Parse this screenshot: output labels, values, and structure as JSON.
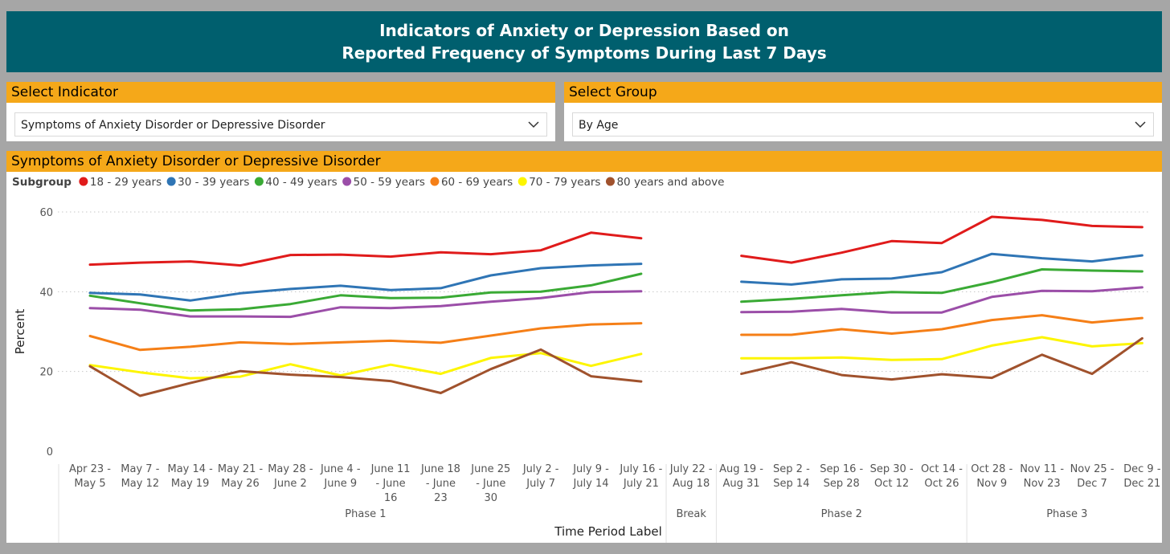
{
  "header": {
    "title_line1": "Indicators of Anxiety or Depression Based on",
    "title_line2": "Reported Frequency of Symptoms During Last 7 Days"
  },
  "indicator_selector": {
    "label": "Select Indicator",
    "value": "Symptoms of Anxiety Disorder or Depressive Disorder",
    "icon": "chevron-down-icon"
  },
  "group_selector": {
    "label": "Select Group",
    "value": "By Age",
    "icon": "chevron-down-icon"
  },
  "chart_panel": {
    "title": "Symptoms of Anxiety Disorder or Depressive Disorder"
  },
  "chart_data": {
    "type": "line",
    "legend_title": "Subgroup",
    "legend_position": "top-left",
    "xlabel": "Time Period Label",
    "ylabel": "Percent",
    "ylim": [
      0,
      60
    ],
    "yticks": [
      0,
      20,
      40,
      60
    ],
    "grid": "horizontal-dotted",
    "categories": [
      [
        "Apr 23 -",
        "May 5"
      ],
      [
        "May 7 -",
        "May 12"
      ],
      [
        "May 14 -",
        "May 19"
      ],
      [
        "May 21 -",
        "May 26"
      ],
      [
        "May 28 -",
        "June 2"
      ],
      [
        "June 4 -",
        "June 9"
      ],
      [
        "June 11",
        "- June",
        "16"
      ],
      [
        "June 18",
        "- June",
        "23"
      ],
      [
        "June 25",
        "- June",
        "30"
      ],
      [
        "July 2 -",
        "July 7"
      ],
      [
        "July 9 -",
        "July 14"
      ],
      [
        "July 16 -",
        "July 21"
      ],
      [
        "July 22 -",
        "Aug 18"
      ],
      [
        "Aug 19 -",
        "Aug 31"
      ],
      [
        "Sep 2 -",
        "Sep 14"
      ],
      [
        "Sep 16 -",
        "Sep 28"
      ],
      [
        "Sep 30 -",
        "Oct 12"
      ],
      [
        "Oct 14 -",
        "Oct 26"
      ],
      [
        "Oct 28 -",
        "Nov 9"
      ],
      [
        "Nov 11 -",
        "Nov 23"
      ],
      [
        "Nov 25 -",
        "Dec 7"
      ],
      [
        "Dec 9 -",
        "Dec 21"
      ]
    ],
    "groups": [
      {
        "name": "Phase 1",
        "start": 0,
        "end": 11
      },
      {
        "name": "Break",
        "start": 12,
        "end": 12
      },
      {
        "name": "Phase 2",
        "start": 13,
        "end": 17
      },
      {
        "name": "Phase 3",
        "start": 18,
        "end": 21
      }
    ],
    "series": [
      {
        "name": "18 - 29 years",
        "color": "#e01b1b",
        "values": [
          46.8,
          47.3,
          47.6,
          46.6,
          49.2,
          49.3,
          48.8,
          49.9,
          49.4,
          50.4,
          54.8,
          53.4,
          null,
          49.0,
          47.3,
          49.8,
          52.7,
          52.2,
          58.8,
          58.0,
          56.5,
          56.2
        ]
      },
      {
        "name": "30 - 39 years",
        "color": "#2f75b5",
        "values": [
          39.7,
          39.3,
          37.8,
          39.6,
          40.7,
          41.5,
          40.4,
          40.9,
          44.1,
          45.9,
          46.6,
          47.0,
          null,
          42.5,
          41.8,
          43.1,
          43.3,
          44.9,
          49.5,
          48.4,
          47.6,
          49.1
        ]
      },
      {
        "name": "40 - 49 years",
        "color": "#3aaa35",
        "values": [
          39.0,
          37.1,
          35.3,
          35.6,
          36.9,
          39.1,
          38.4,
          38.5,
          39.8,
          40.0,
          41.6,
          44.5,
          null,
          37.5,
          38.2,
          39.1,
          39.9,
          39.7,
          42.4,
          45.6,
          45.3,
          45.1
        ]
      },
      {
        "name": "50 - 59 years",
        "color": "#9b4ea8",
        "values": [
          35.9,
          35.5,
          33.8,
          33.8,
          33.7,
          36.1,
          35.9,
          36.4,
          37.5,
          38.4,
          39.9,
          40.1,
          null,
          34.9,
          35.0,
          35.7,
          34.8,
          34.8,
          38.7,
          40.2,
          40.1,
          41.1
        ]
      },
      {
        "name": "60 - 69 years",
        "color": "#f57f17",
        "values": [
          28.9,
          25.4,
          26.2,
          27.3,
          26.9,
          27.3,
          27.7,
          27.2,
          29.0,
          30.8,
          31.8,
          32.1,
          null,
          29.2,
          29.2,
          30.6,
          29.5,
          30.6,
          32.9,
          34.1,
          32.3,
          33.4
        ]
      },
      {
        "name": "70 - 79 years",
        "color": "#fdf500",
        "values": [
          21.6,
          19.8,
          18.3,
          18.7,
          21.8,
          19.0,
          21.7,
          19.4,
          23.4,
          24.6,
          21.4,
          24.4,
          null,
          23.3,
          23.3,
          23.5,
          22.9,
          23.1,
          26.5,
          28.6,
          26.3,
          27.1
        ]
      },
      {
        "name": "80 years and above",
        "color": "#a0522d",
        "values": [
          21.3,
          13.9,
          17.1,
          20.1,
          19.2,
          18.6,
          17.6,
          14.6,
          20.6,
          25.5,
          18.8,
          17.5,
          null,
          19.4,
          22.3,
          19.1,
          18.0,
          19.3,
          18.4,
          24.2,
          19.4,
          28.3
        ]
      }
    ]
  }
}
